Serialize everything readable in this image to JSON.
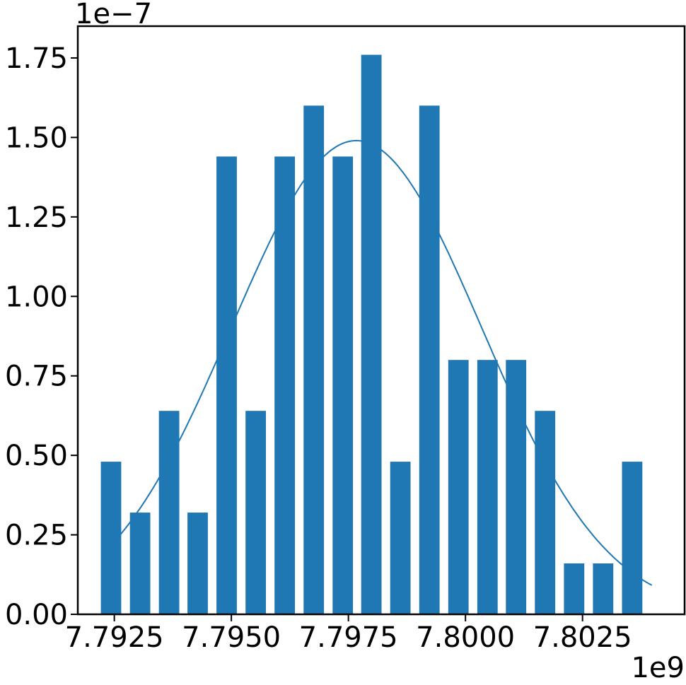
{
  "chart_data": {
    "type": "bar",
    "title": "",
    "xlabel": "",
    "ylabel": "",
    "x_offset_label": "1e9",
    "y_offset_label": "1e−7",
    "bar_color": "#1f77b4",
    "curve_color": "#1f77b4",
    "grid": false,
    "legend": "none",
    "xlim": [
      7.79172,
      7.80468
    ],
    "ylim": [
      0,
      1.85
    ],
    "x_ticks": [
      {
        "value": 7.7925,
        "label": "7.7925"
      },
      {
        "value": 7.795,
        "label": "7.7950"
      },
      {
        "value": 7.7975,
        "label": "7.7975"
      },
      {
        "value": 7.8,
        "label": "7.8000"
      },
      {
        "value": 7.8025,
        "label": "7.8025"
      }
    ],
    "y_ticks": [
      {
        "value": 0.0,
        "label": "0.00"
      },
      {
        "value": 0.25,
        "label": "0.25"
      },
      {
        "value": 0.5,
        "label": "0.50"
      },
      {
        "value": 0.75,
        "label": "0.75"
      },
      {
        "value": 1.0,
        "label": "1.00"
      },
      {
        "value": 1.25,
        "label": "1.25"
      },
      {
        "value": 1.5,
        "label": "1.50"
      },
      {
        "value": 1.75,
        "label": "1.75"
      }
    ],
    "bar_width": 0.000435,
    "bars": [
      {
        "x": 7.79243,
        "value": 0.48
      },
      {
        "x": 7.79305,
        "value": 0.32
      },
      {
        "x": 7.79367,
        "value": 0.64
      },
      {
        "x": 7.79428,
        "value": 0.32
      },
      {
        "x": 7.7949,
        "value": 1.44
      },
      {
        "x": 7.79552,
        "value": 0.64
      },
      {
        "x": 7.79614,
        "value": 1.44
      },
      {
        "x": 7.79676,
        "value": 1.6
      },
      {
        "x": 7.79738,
        "value": 1.44
      },
      {
        "x": 7.79799,
        "value": 1.76
      },
      {
        "x": 7.79861,
        "value": 0.48
      },
      {
        "x": 7.79923,
        "value": 1.6
      },
      {
        "x": 7.79985,
        "value": 0.8
      },
      {
        "x": 7.80047,
        "value": 0.8
      },
      {
        "x": 7.80108,
        "value": 0.8
      },
      {
        "x": 7.8017,
        "value": 0.64
      },
      {
        "x": 7.80232,
        "value": 0.16
      },
      {
        "x": 7.80294,
        "value": 0.16
      },
      {
        "x": 7.80356,
        "value": 0.48
      }
    ],
    "fit_curve": {
      "type": "normal",
      "mean": 7.79767,
      "std": 0.00267,
      "peak": 1.49,
      "x_range": [
        7.79228,
        7.80398
      ]
    }
  }
}
